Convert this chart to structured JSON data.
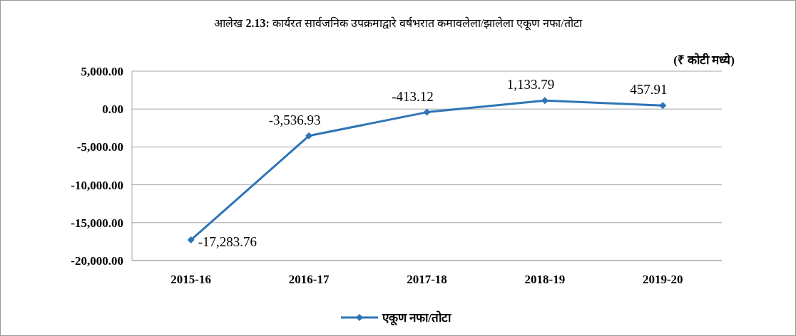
{
  "chart_data": {
    "type": "line",
    "title": "आलेख **2.13:** कार्यरत सार्वजनिक उपक्रमाद्वारे वर्षभरात कमावलेला/झालेला एकूण नफा/तोटा",
    "annotations": [
      "(₹ कोटी मध्ये)"
    ],
    "categories": [
      "2015-16",
      "2016-17",
      "2017-18",
      "2018-19",
      "2019-20"
    ],
    "series": [
      {
        "name": "एकूण नफा/तोटा",
        "color": "#2e75b6",
        "values": [
          -17283.76,
          -3536.93,
          -413.12,
          1133.79,
          457.91
        ],
        "value_labels": [
          "-17,283.76",
          "-3,536.93",
          "-413.12",
          "1,133.79",
          "457.91"
        ]
      }
    ],
    "ylim": [
      -20000,
      5000
    ],
    "yticks": [
      {
        "value": 5000,
        "label": "5,000.00"
      },
      {
        "value": 0,
        "label": "0.00"
      },
      {
        "value": -5000,
        "label": "-5,000.00"
      },
      {
        "value": -10000,
        "label": "-10,000.00"
      },
      {
        "value": -15000,
        "label": "-15,000.00"
      },
      {
        "value": -20000,
        "label": "-20,000.00"
      }
    ],
    "grid": "y",
    "legend": "bottom",
    "marker": "diamond",
    "line_style": "solid"
  }
}
